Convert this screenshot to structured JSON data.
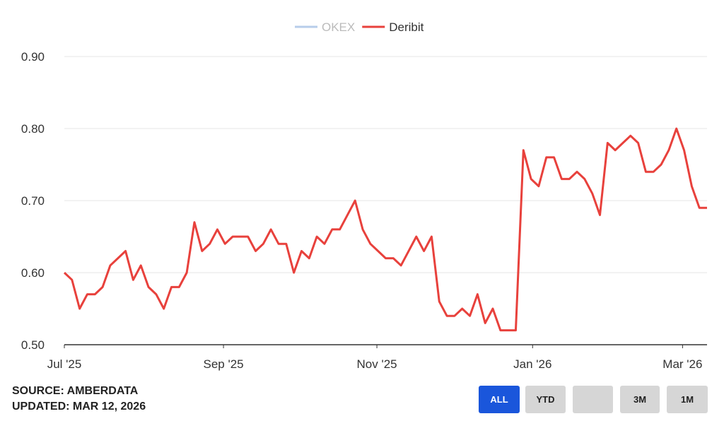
{
  "chart_data": {
    "type": "line",
    "series": [
      {
        "name": "OKEX",
        "color": "#b7cdea",
        "visible": false
      },
      {
        "name": "Deribit",
        "color": "#e8413c",
        "visible": true,
        "values": [
          0.6,
          0.59,
          0.55,
          0.57,
          0.57,
          0.58,
          0.61,
          0.62,
          0.63,
          0.59,
          0.61,
          0.58,
          0.57,
          0.55,
          0.58,
          0.58,
          0.6,
          0.67,
          0.63,
          0.64,
          0.66,
          0.64,
          0.65,
          0.65,
          0.65,
          0.63,
          0.64,
          0.66,
          0.64,
          0.64,
          0.6,
          0.63,
          0.62,
          0.65,
          0.64,
          0.66,
          0.66,
          0.68,
          0.7,
          0.66,
          0.64,
          0.63,
          0.62,
          0.62,
          0.61,
          0.63,
          0.65,
          0.63,
          0.65,
          0.56,
          0.54,
          0.54,
          0.55,
          0.54,
          0.57,
          0.53,
          0.55,
          0.52,
          0.52,
          0.52,
          0.77,
          0.73,
          0.72,
          0.76,
          0.76,
          0.73,
          0.73,
          0.74,
          0.73,
          0.71,
          0.68,
          0.78,
          0.77,
          0.78,
          0.79,
          0.78,
          0.74,
          0.74,
          0.75,
          0.77,
          0.8,
          0.77,
          0.72,
          0.69,
          0.69
        ]
      }
    ],
    "xlim": [
      0,
      84
    ],
    "xticks": [
      {
        "value": 0,
        "label": "Jul '25"
      },
      {
        "value": 20.8,
        "label": "Sep '25"
      },
      {
        "value": 40.85,
        "label": "Nov '25"
      },
      {
        "value": 61.2,
        "label": "Jan '26"
      },
      {
        "value": 80.8,
        "label": "Mar '26"
      }
    ],
    "ylim": [
      0.5,
      0.9
    ],
    "yticks": [
      {
        "value": 0.5,
        "label": "0.50"
      },
      {
        "value": 0.6,
        "label": "0.60"
      },
      {
        "value": 0.7,
        "label": "0.70"
      },
      {
        "value": 0.8,
        "label": "0.80"
      },
      {
        "value": 0.9,
        "label": "0.90"
      }
    ],
    "grid": true,
    "legend_position": "top"
  },
  "footer": {
    "source": "SOURCE: AMBERDATA",
    "updated": "UPDATED: MAR 12, 2026"
  },
  "range_buttons": {
    "labels": [
      "ALL",
      "YTD",
      "3M",
      "1M"
    ],
    "active": "ALL"
  }
}
